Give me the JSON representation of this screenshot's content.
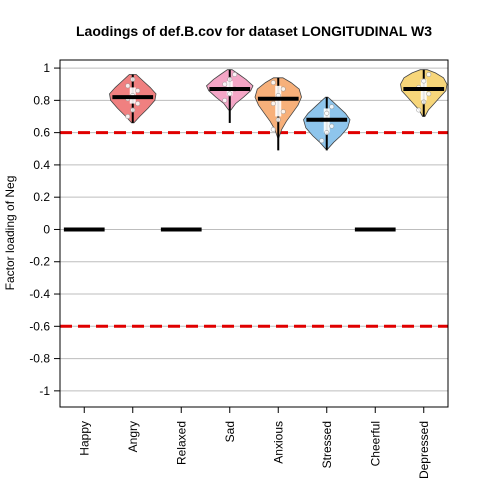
{
  "chart_data": {
    "type": "violin",
    "title": "Laodings of def.B.cov for dataset LONGITUDINAL W3",
    "xlabel": "",
    "ylabel": "Factor loading of Neg",
    "ylim": [
      -1.1,
      1.05
    ],
    "yticks": [
      1,
      0.8,
      0.6,
      0.4,
      0.2,
      0,
      -0.2,
      -0.4,
      -0.6,
      -0.8,
      -1
    ],
    "ytick_labels": [
      "1",
      "0.8",
      "0.6",
      "0.4",
      "0.2",
      "0",
      "-0.2",
      "-0.4",
      "-0.6",
      "-0.8",
      "-1"
    ],
    "grid": true,
    "threshold_lines": [
      0.6,
      -0.6
    ],
    "threshold_color": "#e00000",
    "categories": [
      "Happy",
      "Angry",
      "Relaxed",
      "Sad",
      "Anxious",
      "Stressed",
      "Cheerful",
      "Depressed"
    ],
    "items": [
      {
        "category": "Happy",
        "median": 0,
        "has_violin": false
      },
      {
        "category": "Angry",
        "median": 0.82,
        "has_violin": true,
        "color": "#f08080",
        "range": [
          0.66,
          0.96
        ],
        "q1": 0.78,
        "q3": 0.88,
        "profile": [
          [
            0.66,
            0.05
          ],
          [
            0.7,
            0.3
          ],
          [
            0.75,
            0.65
          ],
          [
            0.8,
            0.95
          ],
          [
            0.84,
            1.0
          ],
          [
            0.88,
            0.75
          ],
          [
            0.92,
            0.45
          ],
          [
            0.96,
            0.15
          ]
        ],
        "points": [
          0.7,
          0.74,
          0.78,
          0.81,
          0.83,
          0.86,
          0.89,
          0.93
        ]
      },
      {
        "category": "Relaxed",
        "median": 0,
        "has_violin": false
      },
      {
        "category": "Sad",
        "median": 0.87,
        "has_violin": true,
        "color": "#f4a6c6",
        "range": [
          0.66,
          0.99
        ],
        "q1": 0.83,
        "q3": 0.92,
        "profile": [
          [
            0.74,
            0.05
          ],
          [
            0.78,
            0.25
          ],
          [
            0.82,
            0.6
          ],
          [
            0.86,
            0.9
          ],
          [
            0.89,
            1.0
          ],
          [
            0.93,
            0.7
          ],
          [
            0.96,
            0.4
          ],
          [
            0.99,
            0.1
          ]
        ],
        "points": [
          0.8,
          0.84,
          0.87,
          0.9,
          0.93,
          0.96
        ]
      },
      {
        "category": "Anxious",
        "median": 0.81,
        "has_violin": true,
        "color": "#f7b07a",
        "range": [
          0.49,
          0.94
        ],
        "q1": 0.7,
        "q3": 0.89,
        "profile": [
          [
            0.57,
            0.03
          ],
          [
            0.62,
            0.15
          ],
          [
            0.67,
            0.35
          ],
          [
            0.72,
            0.6
          ],
          [
            0.77,
            0.85
          ],
          [
            0.82,
            1.0
          ],
          [
            0.87,
            0.9
          ],
          [
            0.91,
            0.55
          ],
          [
            0.94,
            0.2
          ]
        ],
        "points": [
          0.62,
          0.68,
          0.73,
          0.78,
          0.83,
          0.87,
          0.91
        ]
      },
      {
        "category": "Stressed",
        "median": 0.68,
        "has_violin": true,
        "color": "#8ec5ec",
        "range": [
          0.49,
          0.82
        ],
        "q1": 0.6,
        "q3": 0.75,
        "profile": [
          [
            0.5,
            0.05
          ],
          [
            0.54,
            0.3
          ],
          [
            0.58,
            0.6
          ],
          [
            0.63,
            0.9
          ],
          [
            0.68,
            1.0
          ],
          [
            0.72,
            0.8
          ],
          [
            0.76,
            0.5
          ],
          [
            0.8,
            0.2
          ],
          [
            0.82,
            0.05
          ]
        ],
        "points": [
          0.55,
          0.6,
          0.64,
          0.68,
          0.72,
          0.76
        ]
      },
      {
        "category": "Cheerful",
        "median": 0,
        "has_violin": false
      },
      {
        "category": "Depressed",
        "median": 0.87,
        "has_violin": true,
        "color": "#f7d67a",
        "range": [
          0.7,
          0.99
        ],
        "q1": 0.8,
        "q3": 0.93,
        "profile": [
          [
            0.7,
            0.05
          ],
          [
            0.74,
            0.2
          ],
          [
            0.78,
            0.45
          ],
          [
            0.82,
            0.7
          ],
          [
            0.86,
            0.95
          ],
          [
            0.9,
            1.0
          ],
          [
            0.94,
            0.85
          ],
          [
            0.97,
            0.5
          ],
          [
            0.99,
            0.15
          ]
        ],
        "points": [
          0.74,
          0.79,
          0.84,
          0.88,
          0.92,
          0.96
        ]
      }
    ]
  }
}
